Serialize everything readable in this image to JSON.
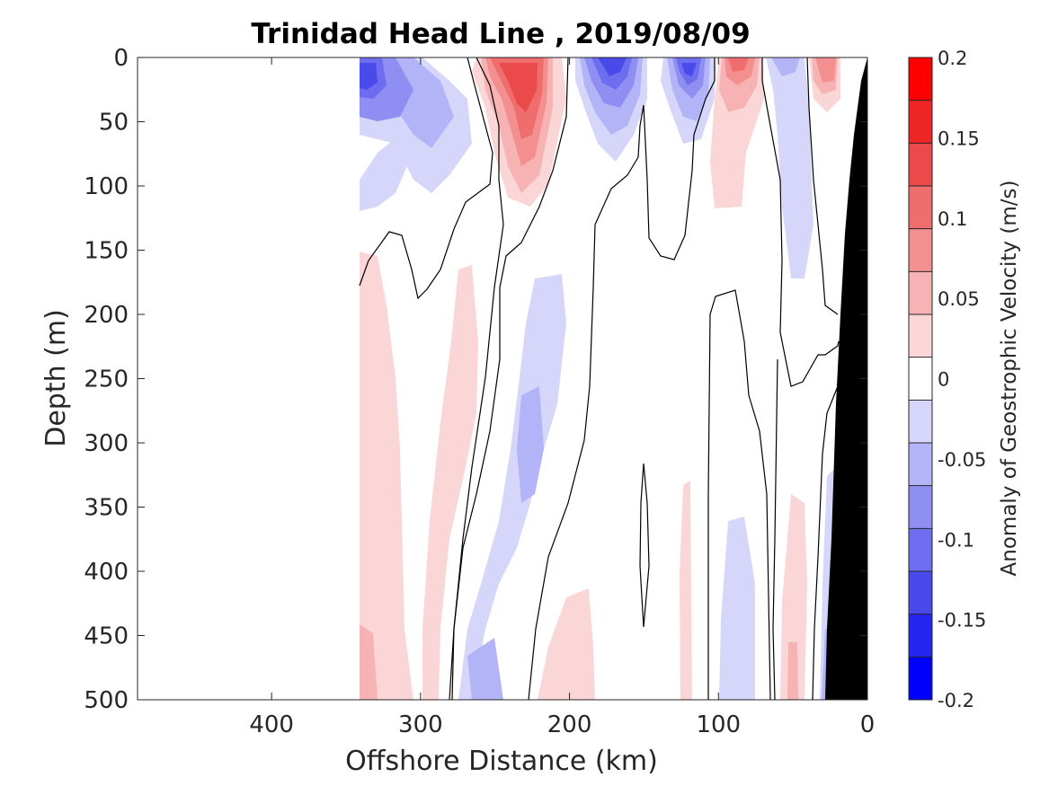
{
  "chart_data": {
    "type": "contour",
    "title": "Trinidad Head Line , 2019/08/09",
    "xlabel": "Offshore Distance (km)",
    "ylabel": "Depth (m)",
    "x_axis_reversed": true,
    "y_axis_reversed": true,
    "xlim": [
      490,
      0
    ],
    "ylim": [
      0,
      500
    ],
    "x_ticks": [
      400,
      300,
      200,
      100,
      0
    ],
    "y_ticks": [
      0,
      50,
      100,
      150,
      200,
      250,
      300,
      350,
      400,
      450,
      500
    ],
    "colorbar": {
      "label": "Anomaly of Geostrophic Velocity (m/s)",
      "range": [
        -0.2,
        0.2
      ],
      "ticks": [
        -0.2,
        -0.15,
        -0.1,
        -0.05,
        0,
        0.05,
        0.1,
        0.15,
        0.2
      ],
      "tick_labels": [
        "-0.2",
        "-0.15",
        "-0.1",
        "-0.05",
        "0",
        "0.05",
        "0.1",
        "0.15",
        "0.2"
      ],
      "levels": 13,
      "colormap": "blue-white-red"
    },
    "data_coverage_km": [
      0,
      340
    ],
    "bathymetry_color": "#000000",
    "features": [
      {
        "x_km": 320,
        "depth_top": 0,
        "depth_bottom": 120,
        "value": -0.12
      },
      {
        "x_km": 235,
        "depth_top": 0,
        "depth_bottom": 110,
        "value": 0.14
      },
      {
        "x_km": 172,
        "depth_top": 0,
        "depth_bottom": 80,
        "value": -0.15
      },
      {
        "x_km": 122,
        "depth_top": 0,
        "depth_bottom": 80,
        "value": -0.13
      },
      {
        "x_km": 90,
        "depth_top": 0,
        "depth_bottom": 115,
        "value": 0.1
      },
      {
        "x_km": 25,
        "depth_top": 0,
        "depth_bottom": 40,
        "value": 0.12
      },
      {
        "x_km": 230,
        "depth_top": 180,
        "depth_bottom": 500,
        "value": -0.05
      },
      {
        "x_km": 265,
        "depth_top": 460,
        "depth_bottom": 500,
        "value": -0.07
      },
      {
        "x_km": 330,
        "depth_top": 440,
        "depth_bottom": 500,
        "value": 0.06
      }
    ]
  }
}
